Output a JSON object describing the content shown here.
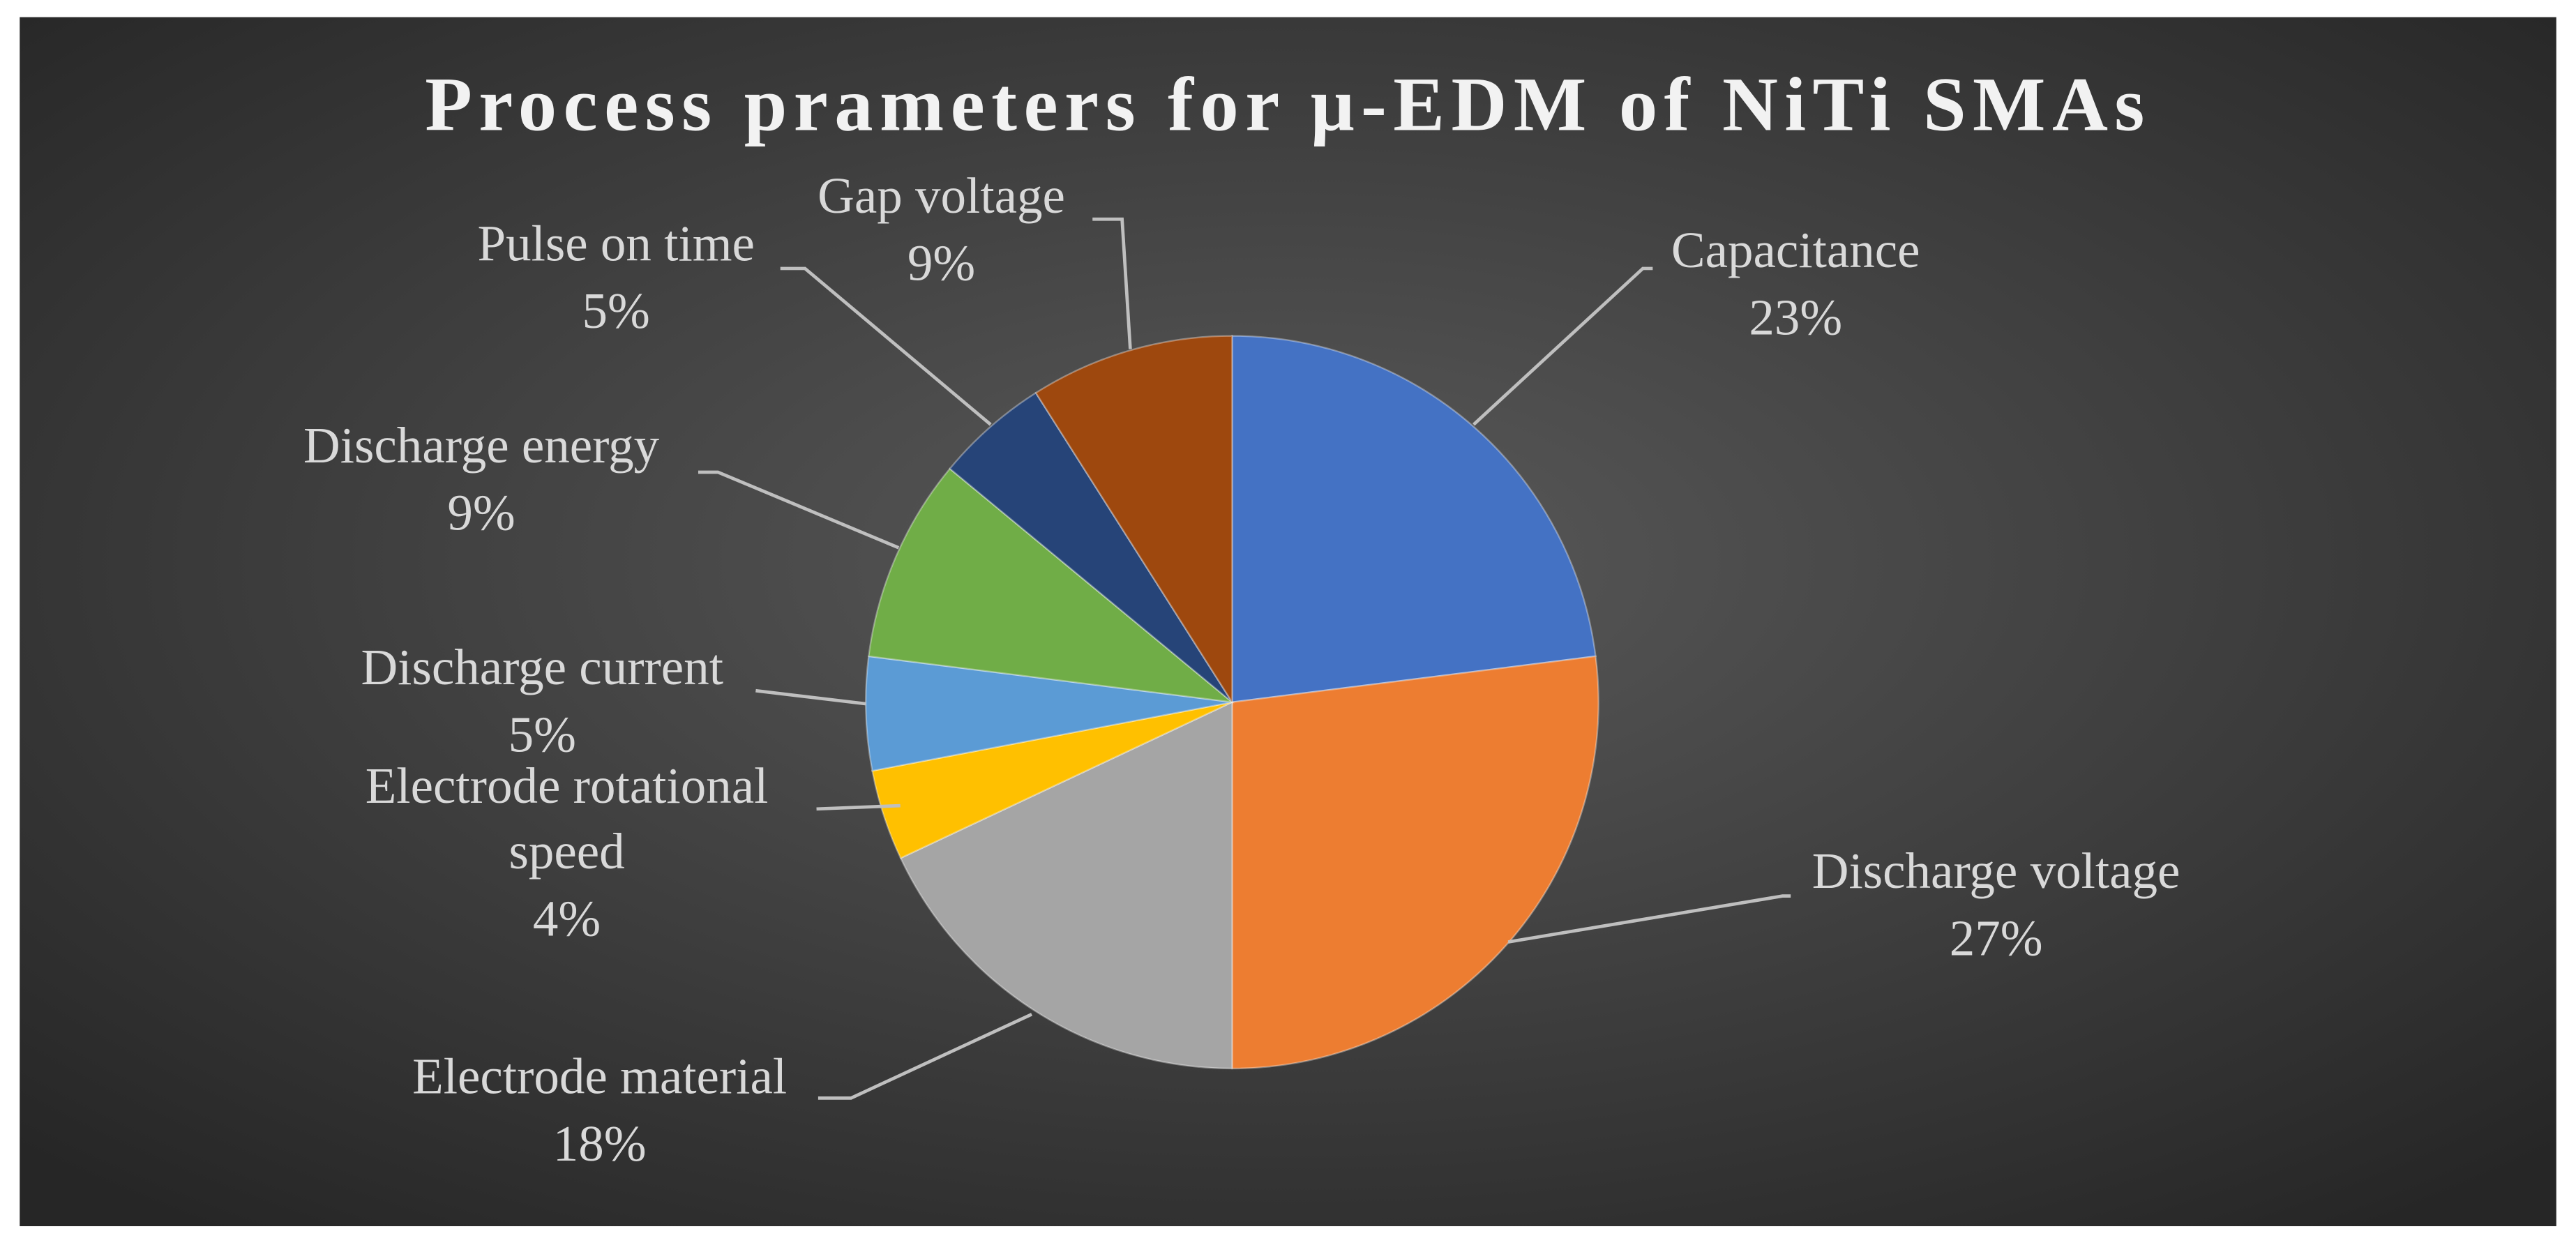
{
  "chart_data": {
    "type": "pie",
    "title": "Process prameters for μ-EDM of NiTi SMAs",
    "categories": [
      "Capacitance",
      "Discharge voltage",
      "Electrode material",
      "Electrode rotational speed",
      "Discharge current",
      "Discharge energy",
      "Pulse on time",
      "Gap voltage"
    ],
    "values": [
      23,
      27,
      18,
      4,
      5,
      9,
      5,
      9
    ],
    "value_labels": [
      "23%",
      "27%",
      "18%",
      "4%",
      "5%",
      "9%",
      "5%",
      "9%"
    ],
    "colors": [
      "#4472c4",
      "#ed7d31",
      "#a5a5a5",
      "#ffc000",
      "#5b9bd5",
      "#70ad47",
      "#264478",
      "#9e480e"
    ]
  }
}
